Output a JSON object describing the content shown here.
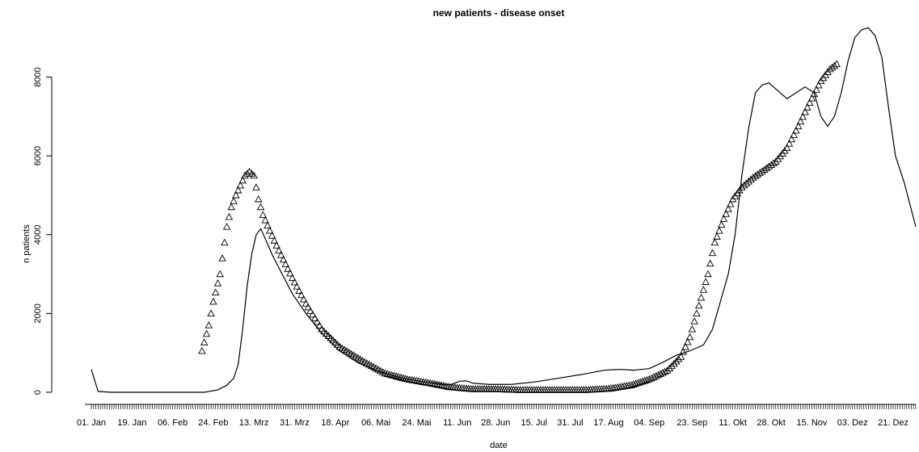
{
  "chart_data": {
    "type": "line",
    "title": "new patients - disease onset",
    "xlabel": "date",
    "ylabel": "n patients",
    "xlim": [
      "2020-01-01",
      "2020-12-31"
    ],
    "ylim": [
      0,
      9300
    ],
    "y_ticks": [
      0,
      2000,
      4000,
      6000,
      8000
    ],
    "x_ticks": [
      {
        "label": "01. Jan",
        "date": "2020-01-01"
      },
      {
        "label": "19. Jan",
        "date": "2020-01-19"
      },
      {
        "label": "06. Feb",
        "date": "2020-02-06"
      },
      {
        "label": "24. Feb",
        "date": "2020-02-24"
      },
      {
        "label": "13. Mrz",
        "date": "2020-03-13"
      },
      {
        "label": "31. Mrz",
        "date": "2020-03-31"
      },
      {
        "label": "18. Apr",
        "date": "2020-04-18"
      },
      {
        "label": "06. Mai",
        "date": "2020-05-06"
      },
      {
        "label": "24. Mai",
        "date": "2020-05-24"
      },
      {
        "label": "11. Jun",
        "date": "2020-06-11"
      },
      {
        "label": "28. Jun",
        "date": "2020-06-28"
      },
      {
        "label": "15. Jul",
        "date": "2020-07-15"
      },
      {
        "label": "31. Jul",
        "date": "2020-07-31"
      },
      {
        "label": "17. Aug",
        "date": "2020-08-17"
      },
      {
        "label": "04. Sep",
        "date": "2020-09-04"
      },
      {
        "label": "23. Sep",
        "date": "2020-09-23"
      },
      {
        "label": "11. Okt",
        "date": "2020-10-11"
      },
      {
        "label": "28. Okt",
        "date": "2020-10-28"
      },
      {
        "label": "15. Nov",
        "date": "2020-11-15"
      },
      {
        "label": "03. Dez",
        "date": "2020-12-03"
      },
      {
        "label": "21. Dez",
        "date": "2020-12-21"
      }
    ],
    "grid": false,
    "legend": "none",
    "series": [
      {
        "style": "line",
        "color": "#000000",
        "points": [
          [
            "2020-01-01",
            580
          ],
          [
            "2020-01-04",
            20
          ],
          [
            "2020-01-10",
            0
          ],
          [
            "2020-02-01",
            0
          ],
          [
            "2020-02-20",
            0
          ],
          [
            "2020-02-26",
            60
          ],
          [
            "2020-03-01",
            180
          ],
          [
            "2020-03-04",
            350
          ],
          [
            "2020-03-06",
            700
          ],
          [
            "2020-03-08",
            1600
          ],
          [
            "2020-03-10",
            2700
          ],
          [
            "2020-03-12",
            3500
          ],
          [
            "2020-03-14",
            4000
          ],
          [
            "2020-03-16",
            4150
          ],
          [
            "2020-03-18",
            3900
          ],
          [
            "2020-03-21",
            3500
          ],
          [
            "2020-03-25",
            3050
          ],
          [
            "2020-03-30",
            2500
          ],
          [
            "2020-04-05",
            2000
          ],
          [
            "2020-04-12",
            1500
          ],
          [
            "2020-04-20",
            1050
          ],
          [
            "2020-04-28",
            750
          ],
          [
            "2020-05-06",
            550
          ],
          [
            "2020-05-16",
            380
          ],
          [
            "2020-05-26",
            270
          ],
          [
            "2020-06-05",
            200
          ],
          [
            "2020-06-08",
            190
          ],
          [
            "2020-06-12",
            280
          ],
          [
            "2020-06-15",
            290
          ],
          [
            "2020-06-18",
            230
          ],
          [
            "2020-06-25",
            200
          ],
          [
            "2020-07-05",
            200
          ],
          [
            "2020-07-15",
            260
          ],
          [
            "2020-07-25",
            350
          ],
          [
            "2020-08-05",
            450
          ],
          [
            "2020-08-15",
            560
          ],
          [
            "2020-08-22",
            580
          ],
          [
            "2020-08-28",
            560
          ],
          [
            "2020-09-04",
            600
          ],
          [
            "2020-09-10",
            760
          ],
          [
            "2020-09-16",
            940
          ],
          [
            "2020-09-22",
            1050
          ],
          [
            "2020-09-28",
            1200
          ],
          [
            "2020-10-02",
            1600
          ],
          [
            "2020-10-06",
            2400
          ],
          [
            "2020-10-09",
            3000
          ],
          [
            "2020-10-12",
            4000
          ],
          [
            "2020-10-15",
            5500
          ],
          [
            "2020-10-18",
            6700
          ],
          [
            "2020-10-21",
            7600
          ],
          [
            "2020-10-24",
            7800
          ],
          [
            "2020-10-27",
            7850
          ],
          [
            "2020-10-31",
            7650
          ],
          [
            "2020-11-04",
            7450
          ],
          [
            "2020-11-08",
            7600
          ],
          [
            "2020-11-12",
            7750
          ],
          [
            "2020-11-16",
            7600
          ],
          [
            "2020-11-19",
            7000
          ],
          [
            "2020-11-22",
            6750
          ],
          [
            "2020-11-25",
            7000
          ],
          [
            "2020-11-28",
            7600
          ],
          [
            "2020-12-01",
            8400
          ],
          [
            "2020-12-04",
            9000
          ],
          [
            "2020-12-07",
            9200
          ],
          [
            "2020-12-10",
            9250
          ],
          [
            "2020-12-13",
            9050
          ],
          [
            "2020-12-16",
            8500
          ],
          [
            "2020-12-19",
            7200
          ],
          [
            "2020-12-22",
            6000
          ],
          [
            "2020-12-26",
            5300
          ],
          [
            "2020-12-31",
            4200
          ]
        ]
      },
      {
        "style": "triangles",
        "color": "#000000",
        "points": [
          [
            "2020-02-19",
            1050
          ],
          [
            "2020-02-22",
            1700
          ],
          [
            "2020-02-24",
            2300
          ],
          [
            "2020-02-27",
            3000
          ],
          [
            "2020-03-01",
            4200
          ],
          [
            "2020-03-03",
            4700
          ],
          [
            "2020-03-05",
            5000
          ],
          [
            "2020-03-07",
            5250
          ],
          [
            "2020-03-09",
            5500
          ],
          [
            "2020-03-11",
            5600
          ],
          [
            "2020-03-13",
            5500
          ],
          [
            "2020-03-15",
            4900
          ],
          [
            "2020-03-17",
            4500
          ],
          [
            "2020-03-20",
            4100
          ],
          [
            "2020-03-24",
            3600
          ],
          [
            "2020-03-30",
            2900
          ],
          [
            "2020-04-05",
            2250
          ],
          [
            "2020-04-12",
            1600
          ],
          [
            "2020-04-20",
            1150
          ],
          [
            "2020-04-30",
            800
          ],
          [
            "2020-05-10",
            480
          ],
          [
            "2020-05-20",
            330
          ],
          [
            "2020-05-30",
            230
          ],
          [
            "2020-06-08",
            130
          ],
          [
            "2020-06-18",
            80
          ],
          [
            "2020-06-28",
            80
          ],
          [
            "2020-07-08",
            60
          ],
          [
            "2020-07-18",
            60
          ],
          [
            "2020-07-28",
            60
          ],
          [
            "2020-08-07",
            60
          ],
          [
            "2020-08-17",
            90
          ],
          [
            "2020-08-27",
            180
          ],
          [
            "2020-09-04",
            330
          ],
          [
            "2020-09-12",
            550
          ],
          [
            "2020-09-18",
            900
          ],
          [
            "2020-09-22",
            1400
          ],
          [
            "2020-09-26",
            2200
          ],
          [
            "2020-09-30",
            3000
          ],
          [
            "2020-10-03",
            3800
          ],
          [
            "2020-10-07",
            4400
          ],
          [
            "2020-10-11",
            4900
          ],
          [
            "2020-10-15",
            5200
          ],
          [
            "2020-10-20",
            5450
          ],
          [
            "2020-10-25",
            5650
          ],
          [
            "2020-10-30",
            5850
          ],
          [
            "2020-11-04",
            6200
          ],
          [
            "2020-11-09",
            6750
          ],
          [
            "2020-11-14",
            7350
          ],
          [
            "2020-11-19",
            7900
          ],
          [
            "2020-11-23",
            8200
          ],
          [
            "2020-11-26",
            8330
          ]
        ]
      }
    ]
  }
}
